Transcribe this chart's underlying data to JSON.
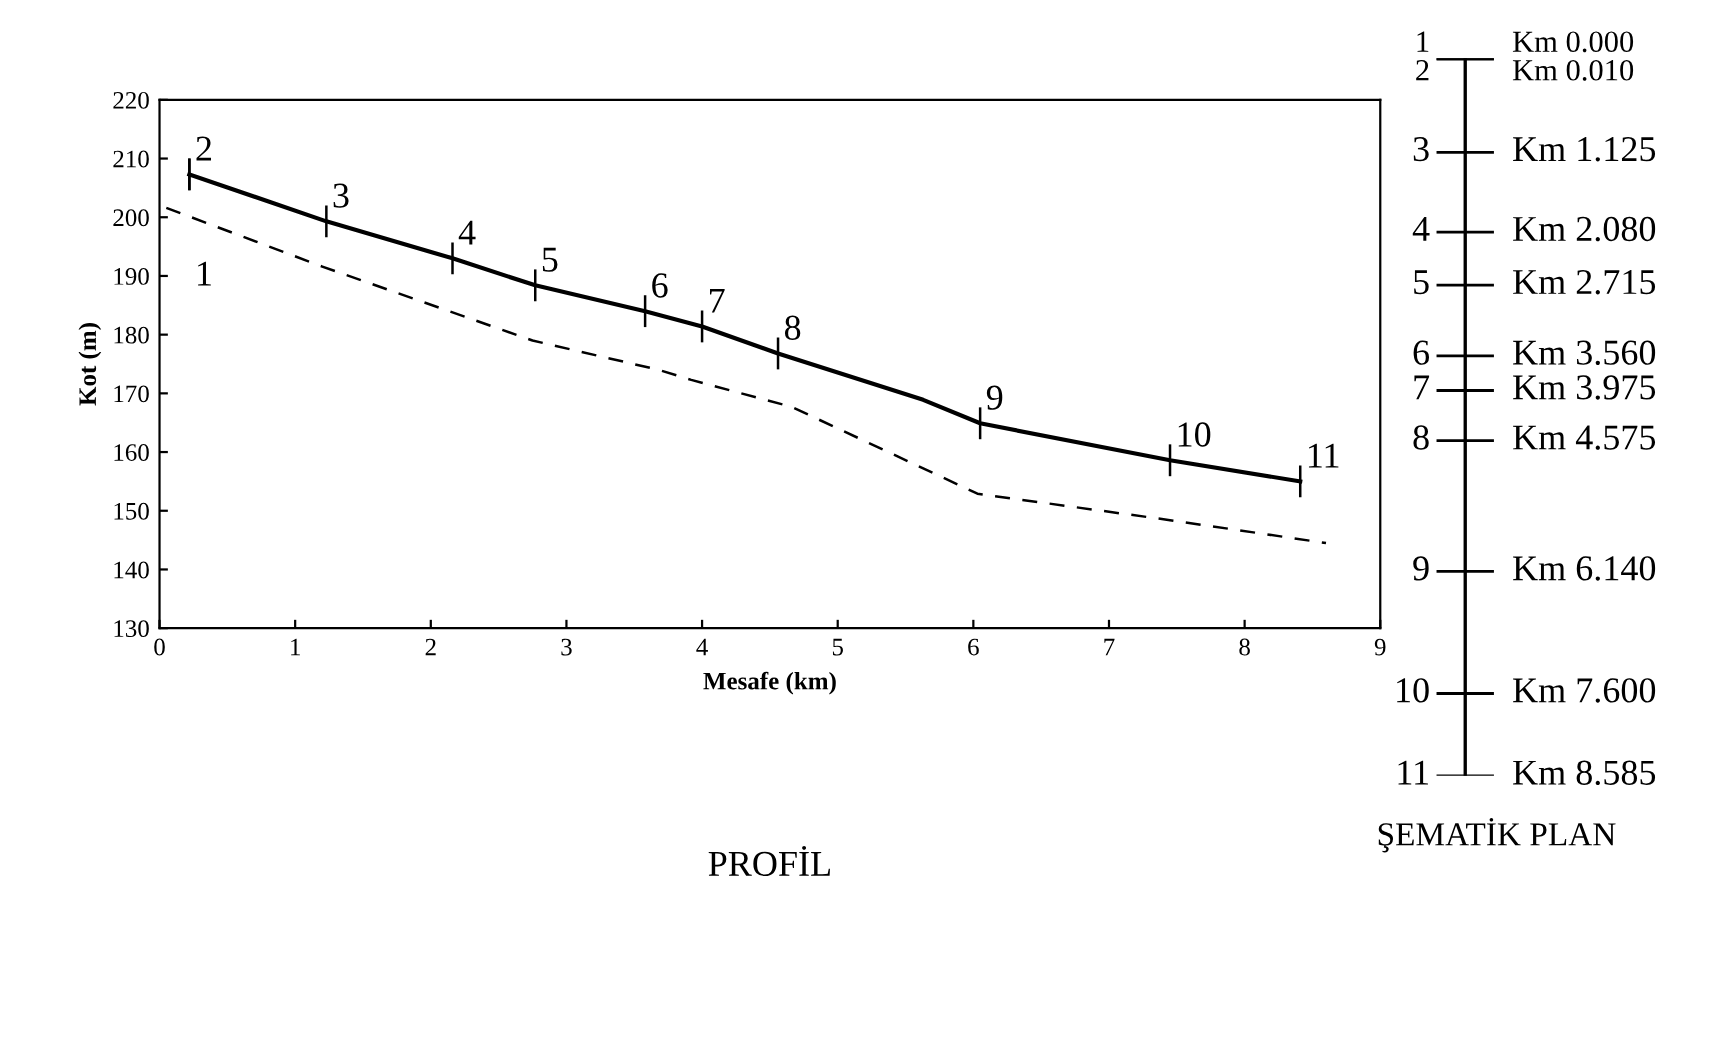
{
  "chart_data": [
    {
      "type": "line",
      "title": "PROFİL",
      "xlabel": "Mesafe (km)",
      "ylabel": "Kot (m)",
      "xlim": [
        0,
        9
      ],
      "xticks": [
        0,
        1,
        2,
        3,
        4,
        5,
        6,
        7,
        8,
        9
      ],
      "ylim": [
        130,
        220
      ],
      "yticks": [
        130,
        140,
        150,
        160,
        170,
        180,
        190,
        200,
        210,
        220
      ],
      "grid": false,
      "legend": false,
      "series": [
        {
          "color": "#000000",
          "line_style": "solid",
          "x": [
            0.22,
            1.23,
            2.16,
            2.77,
            3.58,
            4.0,
            4.56,
            5.63,
            6.05,
            7.45,
            8.41
          ],
          "values": [
            207.3,
            199.3,
            193,
            188.4,
            184,
            181.4,
            176.8,
            168.9,
            164.9,
            158.6,
            155
          ]
        },
        {
          "color": "#000000",
          "line_style": "dashed",
          "x": [
            0.05,
            1.2,
            2.75,
            3.68,
            3.92,
            4.66,
            6.03,
            7.45,
            8.6
          ],
          "values": [
            201.6,
            191.6,
            179,
            174,
            172.3,
            167.7,
            152.9,
            148.4,
            144.5
          ]
        }
      ],
      "annotations": [
        {
          "text": "1",
          "x": 0.22,
          "y": 207.3
        },
        {
          "text": "2",
          "x": 0.22,
          "y": 207.3
        },
        {
          "text": "3",
          "x": 1.23,
          "y": 199.3
        },
        {
          "text": "4",
          "x": 2.16,
          "y": 193
        },
        {
          "text": "5",
          "x": 2.77,
          "y": 188.4
        },
        {
          "text": "6",
          "x": 3.58,
          "y": 184
        },
        {
          "text": "7",
          "x": 4.0,
          "y": 181.4
        },
        {
          "text": "8",
          "x": 4.56,
          "y": 176.8
        },
        {
          "text": "9",
          "x": 6.05,
          "y": 164.9
        },
        {
          "text": "10",
          "x": 7.45,
          "y": 158.6
        },
        {
          "text": "11",
          "x": 8.41,
          "y": 155
        }
      ]
    },
    {
      "type": "other",
      "title": "ŞEMATİK PLAN",
      "categories": [
        "1",
        "2",
        "3",
        "4",
        "5",
        "6",
        "7",
        "8",
        "9",
        "10",
        "11"
      ],
      "values": [
        0.0,
        0.01,
        1.125,
        2.08,
        2.715,
        3.56,
        3.975,
        4.575,
        6.14,
        7.6,
        8.585
      ],
      "value_labels": [
        "Km 0.000",
        "Km 0.010",
        "Km 1.125",
        "Km 2.080",
        "Km 2.715",
        "Km 3.560",
        "Km 3.975",
        "Km 4.575",
        "Km 6.140",
        "Km 7.600",
        "Km 8.585"
      ]
    }
  ]
}
